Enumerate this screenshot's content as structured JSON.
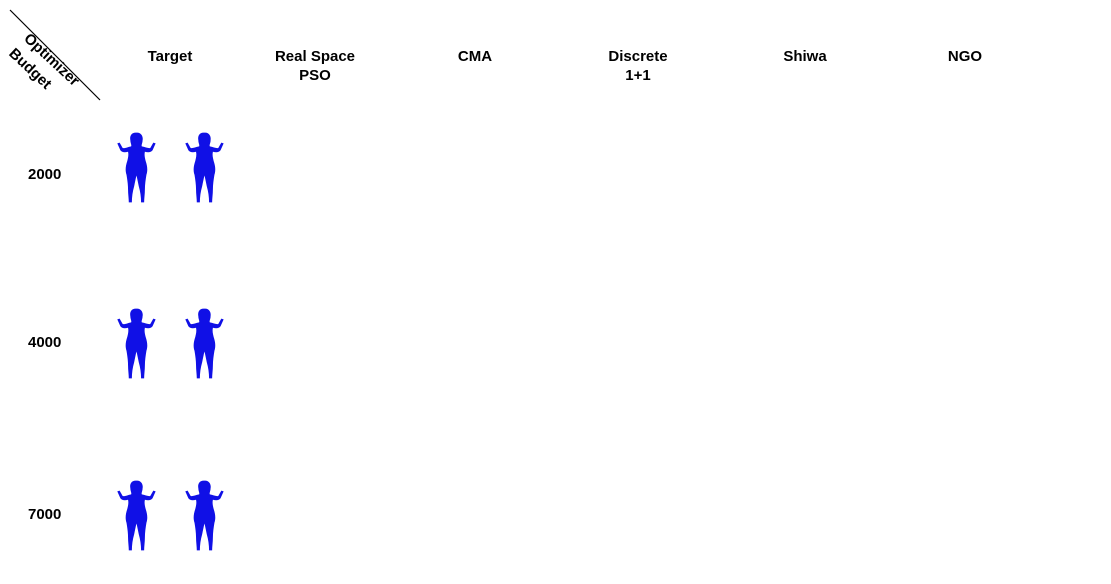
{
  "corner": {
    "top_label": "Optimizer",
    "bottom_label": "Budget"
  },
  "columns": [
    {
      "id": "target",
      "lines": [
        "Target"
      ]
    },
    {
      "id": "pso",
      "lines": [
        "Real Space",
        "PSO"
      ]
    },
    {
      "id": "cma",
      "lines": [
        "CMA"
      ]
    },
    {
      "id": "discrete",
      "lines": [
        "Discrete",
        "1+1"
      ]
    },
    {
      "id": "shiwa",
      "lines": [
        "Shiwa"
      ]
    },
    {
      "id": "ngo",
      "lines": [
        "NGO"
      ]
    }
  ],
  "rows": [
    {
      "budget": "2000"
    },
    {
      "budget": "4000"
    },
    {
      "budget": "7000"
    }
  ],
  "colors": {
    "target_blue": "#1010e6",
    "error_low": "#1a3cd8",
    "error_mid": "#2db86a",
    "error_high": "#c8e020",
    "error_peak": "#f0a020"
  }
}
